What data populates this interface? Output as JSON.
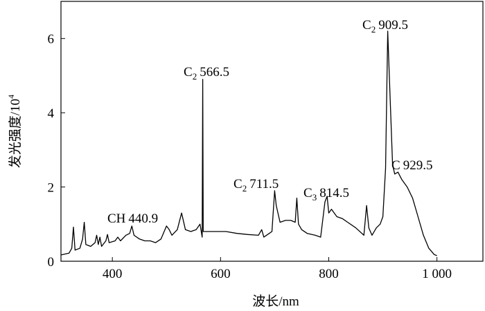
{
  "chart_data": {
    "type": "line",
    "x_label": "波长/nm",
    "y_label": "发光强度/10",
    "y_label_sup": "4",
    "color": "#000000",
    "x": [
      305,
      320,
      325,
      328,
      331,
      340,
      345,
      348,
      351,
      360,
      368,
      371,
      374,
      377,
      380,
      388,
      391,
      394,
      405,
      410,
      415,
      425,
      432,
      436,
      440,
      450,
      460,
      470,
      480,
      490,
      500,
      505,
      510,
      520,
      528,
      535,
      545,
      555,
      562,
      566,
      567,
      568,
      575,
      590,
      610,
      630,
      650,
      670,
      676,
      680,
      690,
      695,
      700,
      703,
      710,
      720,
      730,
      738,
      741,
      744,
      750,
      760,
      775,
      785,
      793,
      797,
      800,
      805,
      815,
      825,
      835,
      850,
      865,
      870,
      874,
      880,
      888,
      895,
      900,
      905,
      909,
      912,
      918,
      922,
      928,
      935,
      945,
      955,
      965,
      975,
      985,
      995,
      1000
    ],
    "values": [
      0.17,
      0.22,
      0.35,
      0.92,
      0.3,
      0.35,
      0.6,
      1.05,
      0.45,
      0.4,
      0.5,
      0.7,
      0.45,
      0.65,
      0.4,
      0.55,
      0.72,
      0.5,
      0.55,
      0.65,
      0.55,
      0.7,
      0.75,
      0.95,
      0.7,
      0.6,
      0.55,
      0.55,
      0.5,
      0.6,
      0.95,
      0.85,
      0.7,
      0.85,
      1.3,
      0.85,
      0.8,
      0.85,
      1.0,
      0.65,
      4.9,
      0.8,
      0.8,
      0.8,
      0.8,
      0.75,
      0.72,
      0.7,
      0.85,
      0.65,
      0.75,
      0.8,
      1.9,
      1.5,
      1.05,
      1.1,
      1.1,
      1.05,
      1.7,
      1.0,
      0.85,
      0.75,
      0.7,
      0.65,
      1.6,
      1.75,
      1.3,
      1.4,
      1.2,
      1.15,
      1.05,
      0.9,
      0.7,
      1.5,
      0.9,
      0.7,
      0.9,
      1.0,
      1.2,
      2.5,
      6.2,
      5.0,
      2.6,
      2.35,
      2.4,
      2.2,
      2.0,
      1.7,
      1.2,
      0.7,
      0.35,
      0.18,
      0.15
    ],
    "xlim": [
      305,
      1085
    ],
    "ylim": [
      0,
      7
    ],
    "xticks": [
      400,
      600,
      800,
      {
        "value": 1000,
        "label": "1 000"
      }
    ],
    "yticks": [
      0,
      2,
      4,
      6
    ],
    "annotations": [
      {
        "label": "CH",
        "wavelength": 440.9
      },
      {
        "label": "C",
        "sub": "2",
        "wavelength": 566.5
      },
      {
        "label": "C",
        "sub": "2",
        "wavelength": 711.5
      },
      {
        "label": "C",
        "sub": "3",
        "wavelength": 814.5
      },
      {
        "label": "C",
        "sub": "2",
        "wavelength": 909.5
      },
      {
        "label": "C",
        "wavelength": 929.5
      }
    ]
  }
}
